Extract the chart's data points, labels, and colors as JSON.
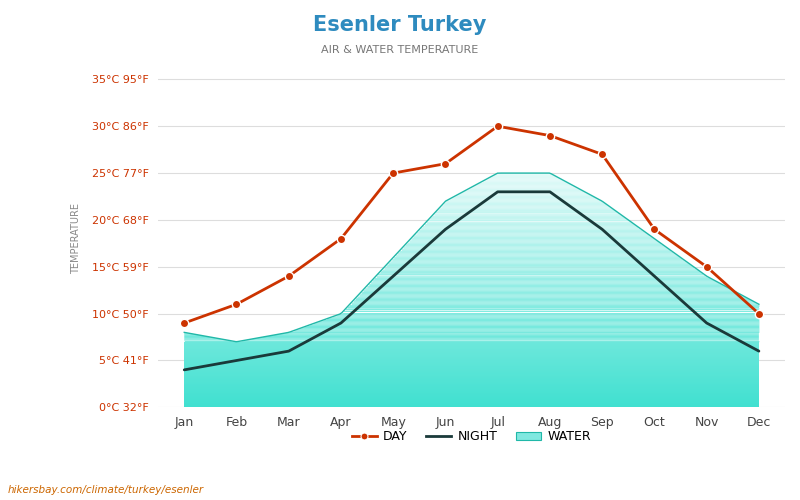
{
  "title": "Esenler Turkey",
  "subtitle": "AIR & WATER TEMPERATURE",
  "months": [
    "Jan",
    "Feb",
    "Mar",
    "Apr",
    "May",
    "Jun",
    "Jul",
    "Aug",
    "Sep",
    "Oct",
    "Nov",
    "Dec"
  ],
  "day_temp": [
    9,
    11,
    14,
    18,
    25,
    26,
    30,
    29,
    27,
    19,
    15,
    10
  ],
  "night_temp": [
    4,
    5,
    6,
    9,
    14,
    19,
    23,
    23,
    19,
    14,
    9,
    6
  ],
  "water_temp": [
    8,
    7,
    8,
    10,
    16,
    22,
    25,
    25,
    22,
    18,
    14,
    11
  ],
  "ylim": [
    0,
    36
  ],
  "yticks_c": [
    0,
    5,
    10,
    15,
    20,
    25,
    30,
    35
  ],
  "yticks_f": [
    32,
    41,
    50,
    59,
    68,
    77,
    86,
    95
  ],
  "title_color": "#2e8bbf",
  "subtitle_color": "#777777",
  "day_color": "#cc3300",
  "night_color": "#1a3a3a",
  "water_top_color": "#40e0d0",
  "water_bottom_color": "#e0faf8",
  "water_line_color": "#20b8a8",
  "ytick_color": "#cc3300",
  "grid_color": "#dddddd",
  "bg_color": "#ffffff",
  "ylabel_color": "#888888",
  "watermark": "hikersbay.com/climate/turkey/esenler",
  "watermark_color": "#cc6600"
}
